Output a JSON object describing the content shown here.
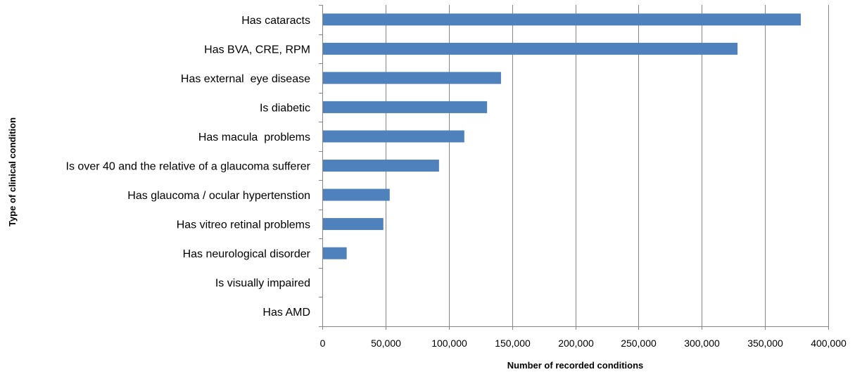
{
  "colors": {
    "bar": "#4f81bd",
    "grid": "#868686",
    "axis": "#868686"
  },
  "chart_data": {
    "type": "bar",
    "orientation": "horizontal",
    "categories": [
      "Has cataracts",
      "Has BVA, CRE, RPM",
      "Has external  eye disease",
      "Is diabetic",
      "Has macula  problems",
      "Is over 40 and the relative of a glaucoma sufferer",
      "Has glaucoma / ocular hypertenstion",
      "Has vitreo retinal problems",
      "Has neurological disorder",
      "Is visually impaired",
      "Has AMD"
    ],
    "values": [
      378000,
      328000,
      141000,
      130000,
      112000,
      92000,
      53000,
      48000,
      19000,
      0,
      0
    ],
    "xlim": [
      0,
      400000
    ],
    "xticks": [
      0,
      50000,
      100000,
      150000,
      200000,
      250000,
      300000,
      350000,
      400000
    ],
    "xtick_labels": [
      "0",
      "50,000",
      "100,000",
      "150,000",
      "200,000",
      "250,000",
      "300,000",
      "350,000",
      "400,000"
    ],
    "xlabel": "Number of recorded conditions",
    "ylabel": "Type of clinical condition",
    "grid": "vertical",
    "legend": "none"
  }
}
